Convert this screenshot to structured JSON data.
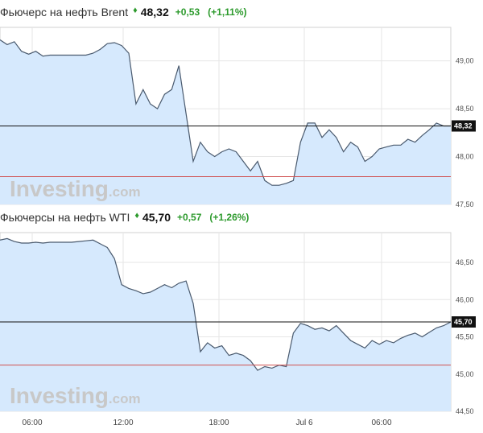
{
  "header_top": {
    "name": "Фьючерс на нефть Brent",
    "arrow": "♦",
    "price": "48,32",
    "change": "+0,53",
    "change_pct": "(+1,11%)"
  },
  "header_bottom": {
    "name": "Фьючерсы на нефть WTI",
    "arrow": "♦",
    "price": "45,70",
    "change": "+0,57",
    "change_pct": "(+1,26%)"
  },
  "watermark": {
    "brand": "Investing",
    "suffix": ".com"
  },
  "x_ticks": [
    "06:00",
    "12:00",
    "18:00",
    "Jul 6",
    "06:00"
  ],
  "colors": {
    "line": "#4a5a6e",
    "fill": "#d6e9fd",
    "prev_close": "#d05050",
    "current": "#111111",
    "grid": "#e6e6e6",
    "positive": "#2c9a2c"
  },
  "chart_data": [
    {
      "type": "area",
      "title": "Фьючерс на нефть Brent",
      "y_ticks": [
        "49,00",
        "48,50",
        "48,00",
        "47,50"
      ],
      "ylim": [
        47.5,
        49.35
      ],
      "current_value": "48,32",
      "current": 48.32,
      "prev_close": 47.79,
      "grid": true,
      "values": [
        49.22,
        49.17,
        49.2,
        49.1,
        49.07,
        49.1,
        49.05,
        49.06,
        49.06,
        49.06,
        49.06,
        49.06,
        49.06,
        49.08,
        49.12,
        49.18,
        49.19,
        49.16,
        49.08,
        48.55,
        48.7,
        48.55,
        48.5,
        48.65,
        48.7,
        48.95,
        48.45,
        47.95,
        48.15,
        48.05,
        48.0,
        48.05,
        48.08,
        48.05,
        47.95,
        47.85,
        47.95,
        47.75,
        47.7,
        47.7,
        47.72,
        47.75,
        48.15,
        48.35,
        48.35,
        48.2,
        48.28,
        48.2,
        48.05,
        48.15,
        48.1,
        47.95,
        48.0,
        48.08,
        48.1,
        48.12,
        48.12,
        48.18,
        48.15,
        48.22,
        48.28,
        48.35,
        48.32,
        48.32
      ]
    },
    {
      "type": "area",
      "title": "Фьючерсы на нефть WTI",
      "y_ticks": [
        "46,50",
        "46,00",
        "45,50",
        "45,00",
        "44,50"
      ],
      "ylim": [
        44.5,
        46.9
      ],
      "current_value": "45,70",
      "current": 45.7,
      "prev_close": 45.12,
      "grid": true,
      "values": [
        46.8,
        46.82,
        46.78,
        46.76,
        46.76,
        46.77,
        46.76,
        46.77,
        46.77,
        46.77,
        46.77,
        46.78,
        46.79,
        46.8,
        46.75,
        46.7,
        46.55,
        46.2,
        46.15,
        46.12,
        46.08,
        46.1,
        46.15,
        46.2,
        46.16,
        46.22,
        46.25,
        45.95,
        45.3,
        45.42,
        45.35,
        45.38,
        45.25,
        45.28,
        45.25,
        45.18,
        45.05,
        45.1,
        45.08,
        45.12,
        45.1,
        45.55,
        45.68,
        45.65,
        45.6,
        45.62,
        45.58,
        45.65,
        45.55,
        45.45,
        45.4,
        45.35,
        45.45,
        45.4,
        45.45,
        45.42,
        45.48,
        45.52,
        45.55,
        45.5,
        45.56,
        45.62,
        45.65,
        45.7
      ]
    }
  ]
}
